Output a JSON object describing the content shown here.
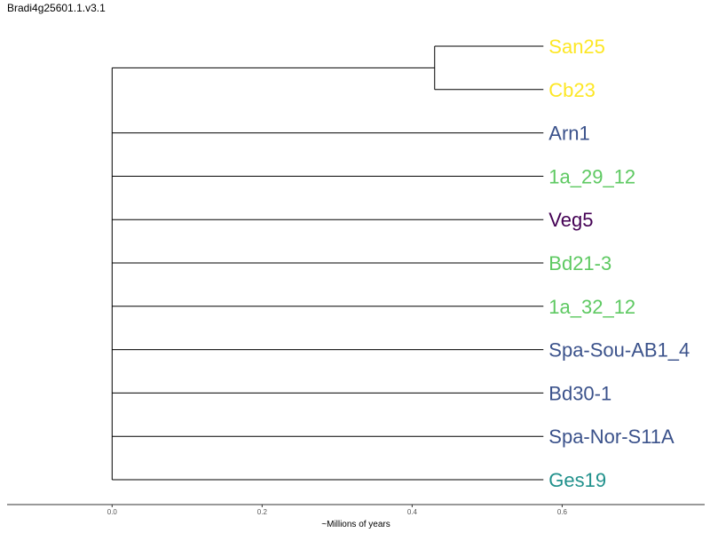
{
  "title": "Bradi4g25601.1.v3.1",
  "axis": {
    "label": "~Millions of years",
    "ticks": [
      {
        "value": 0.0,
        "label": "0.0"
      },
      {
        "value": 0.2,
        "label": "0.2"
      },
      {
        "value": 0.4,
        "label": "0.4"
      },
      {
        "value": 0.6,
        "label": "0.6"
      }
    ],
    "range": [
      -0.14,
      0.79
    ]
  },
  "colors": {
    "branch": "#000000",
    "yellow": "#FDE725",
    "blue": "#3B528B",
    "green": "#5EC962",
    "purple": "#440154",
    "teal": "#21918C"
  },
  "tree": {
    "root_age": 0.0,
    "tip_age": 0.575,
    "internal_nodes": [
      {
        "id": "san_cb_clade",
        "age": 0.43,
        "children": [
          "San25",
          "Cb23"
        ]
      }
    ],
    "leaves": [
      {
        "name": "San25",
        "color": "#FDE725",
        "parent": "san_cb_clade"
      },
      {
        "name": "Cb23",
        "color": "#FDE725",
        "parent": "san_cb_clade"
      },
      {
        "name": "Arn1",
        "color": "#3B528B",
        "parent": "root"
      },
      {
        "name": "1a_29_12",
        "color": "#5EC962",
        "parent": "root"
      },
      {
        "name": "Veg5",
        "color": "#440154",
        "parent": "root"
      },
      {
        "name": "Bd21-3",
        "color": "#5EC962",
        "parent": "root"
      },
      {
        "name": "1a_32_12",
        "color": "#5EC962",
        "parent": "root"
      },
      {
        "name": "Spa-Sou-AB1_4",
        "color": "#3B528B",
        "parent": "root"
      },
      {
        "name": "Bd30-1",
        "color": "#3B528B",
        "parent": "root"
      },
      {
        "name": "Spa-Nor-S11A",
        "color": "#3B528B",
        "parent": "root"
      },
      {
        "name": "Ges19",
        "color": "#21918C",
        "parent": "root"
      }
    ]
  }
}
